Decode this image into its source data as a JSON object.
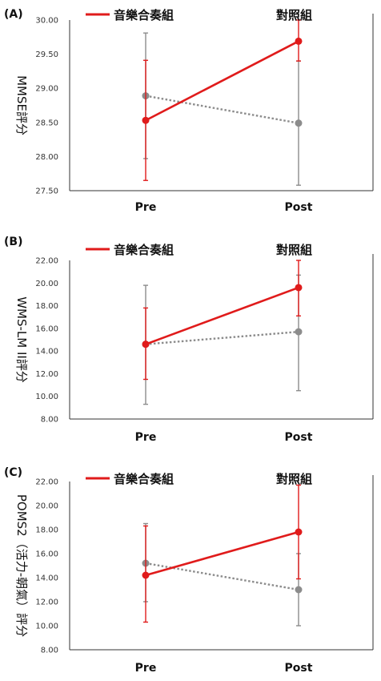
{
  "chart_data": [
    {
      "type": "line",
      "panel_label": "(A)",
      "ylabel": "MMSE評分",
      "categories": [
        "Pre",
        "Post"
      ],
      "ylim": [
        27.5,
        30.0
      ],
      "yticks": [
        "27.50",
        "28.00",
        "28.50",
        "29.00",
        "29.50",
        "30.00"
      ],
      "grid": false,
      "legend_position": "top",
      "series": [
        {
          "name": "音樂合奏組",
          "color": "#e01b1b",
          "style": "solid",
          "values": [
            28.53,
            29.69
          ],
          "error_low": [
            27.65,
            29.4
          ],
          "error_high": [
            29.41,
            30.0
          ]
        },
        {
          "name": "對照組",
          "color": "#8c8c8c",
          "style": "dotted",
          "values": [
            28.89,
            28.49
          ],
          "error_low": [
            27.97,
            27.58
          ],
          "error_high": [
            29.81,
            29.4
          ]
        }
      ]
    },
    {
      "type": "line",
      "panel_label": "(B)",
      "ylabel": "WMS-LM II評分",
      "categories": [
        "Pre",
        "Post"
      ],
      "ylim": [
        8.0,
        22.0
      ],
      "yticks": [
        "8.00",
        "10.00",
        "12.00",
        "14.00",
        "16.00",
        "18.00",
        "20.00",
        "22.00"
      ],
      "grid": false,
      "legend_position": "top",
      "series": [
        {
          "name": "音樂合奏組",
          "color": "#e01b1b",
          "style": "solid",
          "values": [
            14.6,
            19.6
          ],
          "error_low": [
            11.5,
            17.1
          ],
          "error_high": [
            17.8,
            22.0
          ]
        },
        {
          "name": "對照組",
          "color": "#8c8c8c",
          "style": "dotted",
          "values": [
            14.6,
            15.7
          ],
          "error_low": [
            9.3,
            10.5
          ],
          "error_high": [
            19.8,
            20.7
          ]
        }
      ]
    },
    {
      "type": "line",
      "panel_label": "(C)",
      "ylabel": "POMS2（活力-朝氣）評分",
      "categories": [
        "Pre",
        "Post"
      ],
      "ylim": [
        8.0,
        22.0
      ],
      "yticks": [
        "8.00",
        "10.00",
        "12.00",
        "14.00",
        "16.00",
        "18.00",
        "20.00",
        "22.00"
      ],
      "grid": false,
      "legend_position": "top",
      "series": [
        {
          "name": "音樂合奏組",
          "color": "#e01b1b",
          "style": "solid",
          "values": [
            14.2,
            17.8
          ],
          "error_low": [
            10.3,
            13.9
          ],
          "error_high": [
            18.3,
            21.7
          ]
        },
        {
          "name": "對照組",
          "color": "#8c8c8c",
          "style": "dotted",
          "values": [
            15.2,
            13.0
          ],
          "error_low": [
            12.0,
            10.0
          ],
          "error_high": [
            18.5,
            16.0
          ]
        }
      ]
    }
  ]
}
